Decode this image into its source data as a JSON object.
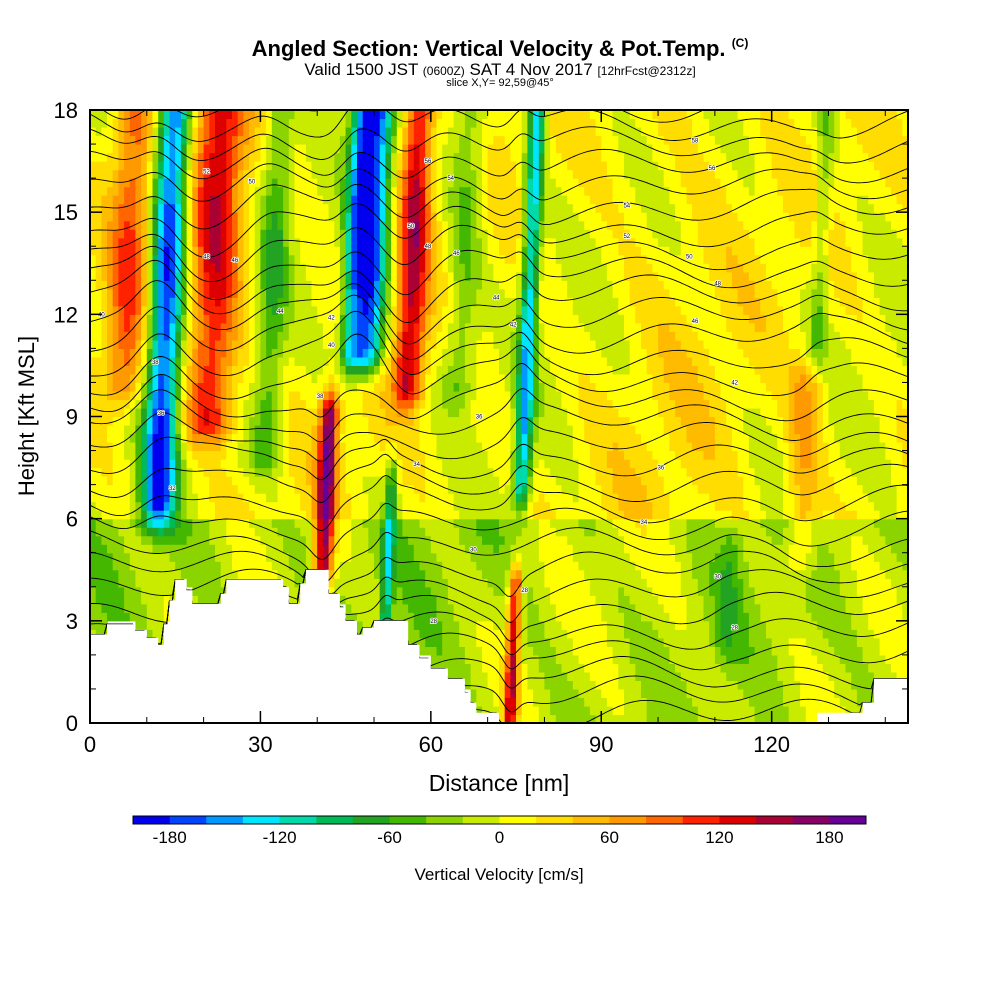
{
  "header": {
    "title": "Angled Section: Vertical Velocity & Pot.Temp.",
    "title_tag": "(C)",
    "valid_prefix": "Valid 1500 JST",
    "valid_z": "(0600Z)",
    "valid_date": "SAT 4 Nov 2017",
    "forecast": "[12hrFcst@2312z]",
    "slice": "slice X,Y= 92,59@45°"
  },
  "chart_data": {
    "type": "heatmap",
    "xlabel": "Distance [nm]",
    "ylabel": "Height [Kft MSL]",
    "xlim": [
      0,
      144
    ],
    "ylim": [
      0,
      18
    ],
    "xticks": [
      0,
      30,
      60,
      90,
      120
    ],
    "yticks": [
      0,
      3,
      6,
      9,
      12,
      15,
      18
    ],
    "colorbar": {
      "label": "Vertical Velocity [cm/s]",
      "range": [
        -200,
        200
      ],
      "step": 20,
      "tick_labels": [
        "-180",
        "-120",
        "-60",
        "0",
        "60",
        "120",
        "180"
      ],
      "tick_values": [
        -180,
        -120,
        -60,
        0,
        60,
        120,
        180
      ],
      "colors": [
        "#0000ee",
        "#0044ff",
        "#0099ff",
        "#00e5ff",
        "#00d9aa",
        "#00bb55",
        "#22a322",
        "#44b800",
        "#8cd400",
        "#c8eb00",
        "#ffff00",
        "#ffdd00",
        "#ffbb00",
        "#ff9900",
        "#ff6600",
        "#ff2200",
        "#dd0000",
        "#aa0033",
        "#880066",
        "#660099"
      ]
    },
    "terrain_profile": [
      [
        0,
        2.6
      ],
      [
        3,
        2.6
      ],
      [
        3,
        2.9
      ],
      [
        8,
        2.9
      ],
      [
        8,
        2.7
      ],
      [
        10,
        2.7
      ],
      [
        10,
        2.5
      ],
      [
        12,
        2.5
      ],
      [
        12,
        2.3
      ],
      [
        13,
        2.3
      ],
      [
        13,
        2.9
      ],
      [
        14,
        2.9
      ],
      [
        14,
        3.6
      ],
      [
        15,
        3.6
      ],
      [
        15,
        4.2
      ],
      [
        17,
        4.2
      ],
      [
        17,
        3.9
      ],
      [
        18,
        3.9
      ],
      [
        18,
        3.5
      ],
      [
        23,
        3.5
      ],
      [
        23,
        3.8
      ],
      [
        24,
        3.8
      ],
      [
        24,
        4.2
      ],
      [
        34,
        4.2
      ],
      [
        34,
        4.0
      ],
      [
        35,
        4.0
      ],
      [
        35,
        3.5
      ],
      [
        37,
        3.5
      ],
      [
        37,
        4.1
      ],
      [
        38,
        4.1
      ],
      [
        38,
        4.5
      ],
      [
        42,
        4.5
      ],
      [
        42,
        3.8
      ],
      [
        44,
        3.8
      ],
      [
        44,
        3.4
      ],
      [
        45,
        3.4
      ],
      [
        45,
        3.0
      ],
      [
        47,
        3.0
      ],
      [
        47,
        2.6
      ],
      [
        48,
        2.6
      ],
      [
        48,
        2.8
      ],
      [
        50,
        2.8
      ],
      [
        50,
        3.0
      ],
      [
        56,
        3.0
      ],
      [
        56,
        2.3
      ],
      [
        58,
        2.3
      ],
      [
        58,
        1.9
      ],
      [
        60,
        1.9
      ],
      [
        60,
        1.6
      ],
      [
        63,
        1.6
      ],
      [
        63,
        1.3
      ],
      [
        66,
        1.3
      ],
      [
        66,
        0.9
      ],
      [
        67,
        0.9
      ],
      [
        67,
        0.6
      ],
      [
        68,
        0.6
      ],
      [
        68,
        0.3
      ],
      [
        72,
        0.3
      ],
      [
        72,
        0
      ],
      [
        128,
        0
      ],
      [
        128,
        0.3
      ],
      [
        136,
        0.3
      ],
      [
        136,
        0.6
      ],
      [
        138,
        0.6
      ],
      [
        138,
        1.3
      ],
      [
        144,
        1.3
      ]
    ],
    "field_features": [
      {
        "x": 12,
        "w": 3.0,
        "zmin": 6.5,
        "zmax": 18,
        "v": -190
      },
      {
        "x": 21,
        "w": 4.5,
        "zmin": 9,
        "zmax": 18,
        "v": 120
      },
      {
        "x": 6,
        "w": 3.5,
        "zmin": 10,
        "zmax": 18,
        "v": 80
      },
      {
        "x": 31,
        "w": 2.5,
        "zmin": 8,
        "zmax": 18,
        "v": -60
      },
      {
        "x": 41,
        "w": 1.6,
        "zmin": 4.5,
        "zmax": 9,
        "v": 170
      },
      {
        "x": 49,
        "w": 2.6,
        "zmin": 11,
        "zmax": 18,
        "v": -180
      },
      {
        "x": 46,
        "w": 2.0,
        "zmin": 11,
        "zmax": 18,
        "v": -130
      },
      {
        "x": 56,
        "w": 2.6,
        "zmin": 10,
        "zmax": 18,
        "v": 130
      },
      {
        "x": 52,
        "w": 1.0,
        "zmin": 3,
        "zmax": 7,
        "v": -90
      },
      {
        "x": 76,
        "w": 1.5,
        "zmin": 7,
        "zmax": 18,
        "v": -140
      },
      {
        "x": 74,
        "w": 1.2,
        "zmin": 0.3,
        "zmax": 4,
        "v": 140
      },
      {
        "x": 65,
        "w": 3.0,
        "zmin": 10,
        "zmax": 18,
        "v": -55
      },
      {
        "x": 100,
        "w": 12,
        "zmin": 0.5,
        "zmax": 18,
        "v": 12
      },
      {
        "x": 125,
        "w": 3,
        "zmin": 5,
        "zmax": 10,
        "v": 55
      },
      {
        "x": 128,
        "w": 1.5,
        "zmin": 11,
        "zmax": 18,
        "v": -45
      },
      {
        "x": 112,
        "w": 2,
        "zmin": 2.5,
        "zmax": 5,
        "v": -30
      }
    ],
    "isentrope_labels": [
      {
        "x": 20.5,
        "z": 16.2,
        "text": "52"
      },
      {
        "x": 28.5,
        "z": 15.9,
        "text": "50"
      },
      {
        "x": 20.5,
        "z": 13.7,
        "text": "48"
      },
      {
        "x": 25.5,
        "z": 13.6,
        "text": "46"
      },
      {
        "x": 33.5,
        "z": 12.1,
        "text": "44"
      },
      {
        "x": 42.5,
        "z": 11.9,
        "text": "42"
      },
      {
        "x": 42.5,
        "z": 11.1,
        "text": "40"
      },
      {
        "x": 2,
        "z": 12.0,
        "text": "40"
      },
      {
        "x": 11.5,
        "z": 10.6,
        "text": "38"
      },
      {
        "x": 12.5,
        "z": 9.1,
        "text": "36"
      },
      {
        "x": 14.5,
        "z": 6.9,
        "text": "32"
      },
      {
        "x": 40.5,
        "z": 9.6,
        "text": "38"
      },
      {
        "x": 59.5,
        "z": 16.5,
        "text": "56"
      },
      {
        "x": 63.5,
        "z": 16.0,
        "text": "54"
      },
      {
        "x": 56.5,
        "z": 14.6,
        "text": "50"
      },
      {
        "x": 59.5,
        "z": 14.0,
        "text": "48"
      },
      {
        "x": 64.5,
        "z": 13.8,
        "text": "46"
      },
      {
        "x": 71.5,
        "z": 12.5,
        "text": "44"
      },
      {
        "x": 74.5,
        "z": 11.7,
        "text": "42"
      },
      {
        "x": 68.5,
        "z": 9.0,
        "text": "36"
      },
      {
        "x": 57.5,
        "z": 7.6,
        "text": "34"
      },
      {
        "x": 67.5,
        "z": 5.1,
        "text": "30"
      },
      {
        "x": 60.5,
        "z": 3.0,
        "text": "28"
      },
      {
        "x": 76.5,
        "z": 3.9,
        "text": "28"
      },
      {
        "x": 106.5,
        "z": 17.1,
        "text": "58"
      },
      {
        "x": 109.5,
        "z": 16.3,
        "text": "56"
      },
      {
        "x": 94.5,
        "z": 15.2,
        "text": "54"
      },
      {
        "x": 94.5,
        "z": 14.3,
        "text": "52"
      },
      {
        "x": 105.5,
        "z": 13.7,
        "text": "50"
      },
      {
        "x": 110.5,
        "z": 12.9,
        "text": "48"
      },
      {
        "x": 106.5,
        "z": 11.8,
        "text": "46"
      },
      {
        "x": 113.5,
        "z": 10.0,
        "text": "42"
      },
      {
        "x": 100.5,
        "z": 7.5,
        "text": "36"
      },
      {
        "x": 97.5,
        "z": 5.9,
        "text": "34"
      },
      {
        "x": 110.5,
        "z": 4.3,
        "text": "30"
      },
      {
        "x": 113.5,
        "z": 2.8,
        "text": "28"
      }
    ]
  }
}
